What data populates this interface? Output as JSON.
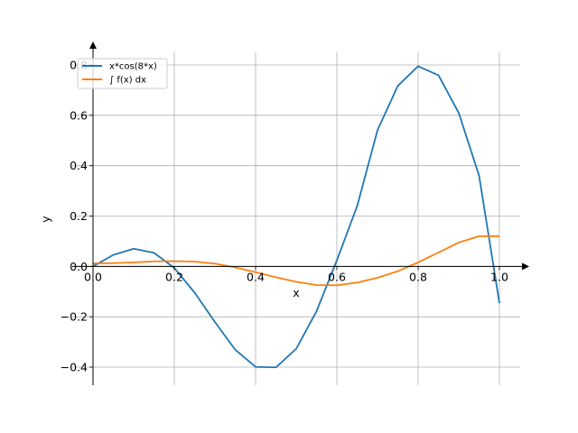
{
  "chart_data": {
    "type": "line",
    "xlabel": "x",
    "ylabel": "y",
    "xlim": [
      0.0,
      1.0
    ],
    "ylim": [
      -0.4,
      0.8
    ],
    "xticks": [
      0.0,
      0.2,
      0.4,
      0.6,
      0.8,
      1.0
    ],
    "xtick_labels": [
      "0.0",
      "0.2",
      "0.4",
      "0.6",
      "0.8",
      "1.0"
    ],
    "yticks": [
      -0.4,
      -0.2,
      0.0,
      0.2,
      0.4,
      0.6,
      0.8
    ],
    "ytick_labels": [
      "−0.4",
      "−0.2",
      "0.0",
      "0.2",
      "0.4",
      "0.6",
      "0.8"
    ],
    "grid": true,
    "legend_position": "top-left",
    "series": [
      {
        "name": "x*cos(8*x)",
        "color": "#1f77b4",
        "x": [
          0.0,
          0.05,
          0.1,
          0.15,
          0.2,
          0.25,
          0.3,
          0.35,
          0.4,
          0.45,
          0.5,
          0.55,
          0.6,
          0.65,
          0.7,
          0.75,
          0.8,
          0.85,
          0.9,
          0.95,
          1.0
        ],
        "y": [
          0.0,
          0.046,
          0.07,
          0.054,
          -0.006,
          -0.104,
          -0.221,
          -0.331,
          -0.399,
          -0.401,
          -0.327,
          -0.178,
          0.024,
          0.24,
          0.541,
          0.717,
          0.795,
          0.759,
          0.609,
          0.36,
          -0.146
        ]
      },
      {
        "name": "∫ f(x) dx",
        "color": "#ff7f0e",
        "x": [
          0.0,
          0.05,
          0.1,
          0.15,
          0.2,
          0.25,
          0.3,
          0.35,
          0.4,
          0.45,
          0.5,
          0.55,
          0.6,
          0.65,
          0.7,
          0.75,
          0.8,
          0.85,
          0.9,
          0.95,
          1.0
        ],
        "y": [
          0.012,
          0.013,
          0.016,
          0.02,
          0.021,
          0.019,
          0.011,
          -0.004,
          -0.023,
          -0.043,
          -0.061,
          -0.074,
          -0.075,
          -0.064,
          -0.045,
          -0.019,
          0.016,
          0.055,
          0.095,
          0.12,
          0.12
        ]
      }
    ]
  }
}
